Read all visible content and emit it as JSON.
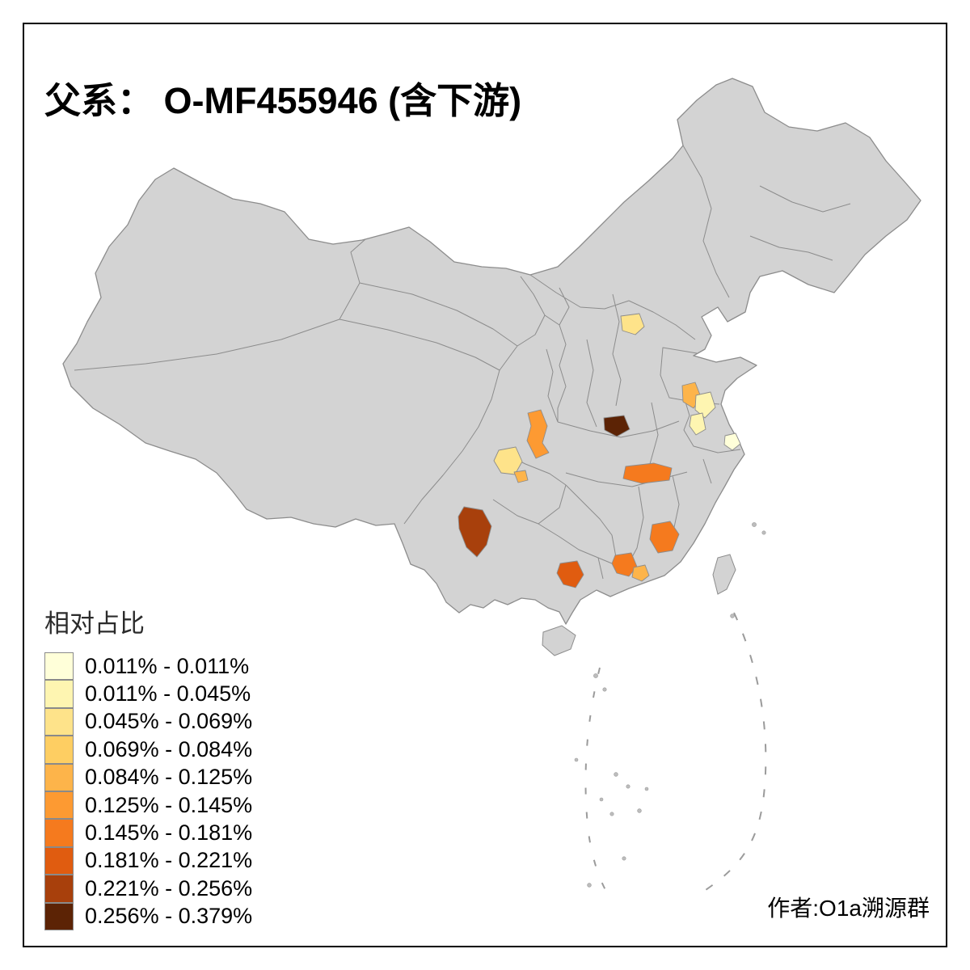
{
  "title": "父系： O-MF455946 (含下游)",
  "attribution": "作者:O1a溯源群",
  "legend": {
    "title": "相对占比",
    "classes": [
      {
        "label": "0.011% - 0.011%",
        "color": "#FFFFD9"
      },
      {
        "label": "0.011% - 0.045%",
        "color": "#FEF5B1"
      },
      {
        "label": "0.045% - 0.069%",
        "color": "#FEE38A"
      },
      {
        "label": "0.069% - 0.084%",
        "color": "#FECE62"
      },
      {
        "label": "0.084% - 0.125%",
        "color": "#FDB44A"
      },
      {
        "label": "0.125% - 0.145%",
        "color": "#FD9A32"
      },
      {
        "label": "0.145% - 0.181%",
        "color": "#F57A1E"
      },
      {
        "label": "0.181% - 0.221%",
        "color": "#E05C10"
      },
      {
        "label": "0.221% - 0.256%",
        "color": "#A8400C"
      },
      {
        "label": "0.256% - 0.379%",
        "color": "#5C2305"
      }
    ]
  },
  "map": {
    "base_fill": "#D3D3D3",
    "border_color": "#8C8C8C",
    "background": "#FFFFFF",
    "frame_border": "#000000",
    "patches": [
      {
        "name": "patch-beijing-area",
        "color": "#FEE38A"
      },
      {
        "name": "patch-south-shaanxi",
        "color": "#FD9A32"
      },
      {
        "name": "patch-central-sichuan",
        "color": "#FEE38A"
      },
      {
        "name": "patch-central-sichuan-small",
        "color": "#FDB44A"
      },
      {
        "name": "patch-south-henan",
        "color": "#5C2305"
      },
      {
        "name": "patch-north-jiangsu",
        "color": "#FDB44A"
      },
      {
        "name": "patch-mid-jiangsu",
        "color": "#FEF5B1"
      },
      {
        "name": "patch-south-jiangsu",
        "color": "#FEF5B1"
      },
      {
        "name": "patch-shanghai-area",
        "color": "#FFFFD9"
      },
      {
        "name": "patch-hubei-hunan",
        "color": "#F57A1E"
      },
      {
        "name": "patch-yunnan",
        "color": "#A8400C"
      },
      {
        "name": "patch-fujian",
        "color": "#F57A1E"
      },
      {
        "name": "patch-guangdong-west",
        "color": "#F57A1E"
      },
      {
        "name": "patch-guangdong-east",
        "color": "#FDB44A"
      },
      {
        "name": "patch-guangxi",
        "color": "#E05C10"
      }
    ]
  }
}
